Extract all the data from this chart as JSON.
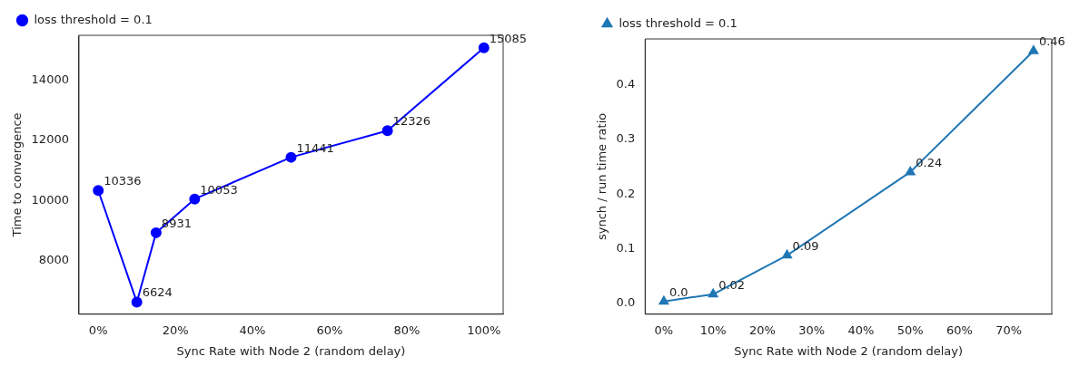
{
  "chart_data": [
    {
      "type": "line",
      "xlabel": "Sync Rate with Node 2 (random delay)",
      "ylabel": "Time to convergence",
      "x": [
        0,
        10,
        15,
        25,
        50,
        75,
        100
      ],
      "series": [
        {
          "name": "loss threshold = 0.1",
          "color": "#0000ff",
          "values": [
            10336,
            6624,
            8931,
            10053,
            11441,
            12326,
            15085
          ]
        }
      ],
      "data_labels": true,
      "xlim": [
        -5,
        105
      ],
      "xticks": [
        {
          "value": 0,
          "label": "0%"
        },
        {
          "value": 20,
          "label": "20%"
        },
        {
          "value": 40,
          "label": "40%"
        },
        {
          "value": 60,
          "label": "60%"
        },
        {
          "value": 80,
          "label": "80%"
        },
        {
          "value": 100,
          "label": "100%"
        }
      ],
      "ylim": [
        6220,
        15500
      ],
      "yticks": [
        8000,
        10000,
        12000,
        14000
      ],
      "legend": "top left",
      "marker": "circle",
      "grid": false
    },
    {
      "type": "line",
      "xlabel": "Sync Rate with Node 2 (random delay)",
      "ylabel": "synch / run time ratio",
      "x": [
        0,
        10,
        25,
        50,
        75
      ],
      "series": [
        {
          "name": "loss threshold = 0.1",
          "color": "#1f77b4",
          "values": [
            0.004,
            0.017,
            0.088,
            0.24,
            0.461
          ],
          "value_labels": [
            "0.0",
            "0.02",
            "0.09",
            "0.24",
            "0.46"
          ]
        }
      ],
      "xlim": [
        -3.8,
        78.7
      ],
      "xticks": [
        {
          "value": 0,
          "label": "0%"
        },
        {
          "value": 10,
          "label": "10%"
        },
        {
          "value": 20,
          "label": "20%"
        },
        {
          "value": 30,
          "label": "30%"
        },
        {
          "value": 40,
          "label": "40%"
        },
        {
          "value": 50,
          "label": "50%"
        },
        {
          "value": 60,
          "label": "60%"
        },
        {
          "value": 70,
          "label": "70%"
        }
      ],
      "ylim": [
        -0.0194,
        0.483
      ],
      "yticks": [
        {
          "value": 0,
          "label": "0.0"
        },
        0.1,
        0.2,
        0.3,
        0.4
      ],
      "legend": "top left",
      "marker": "triangle",
      "grid": false
    }
  ]
}
